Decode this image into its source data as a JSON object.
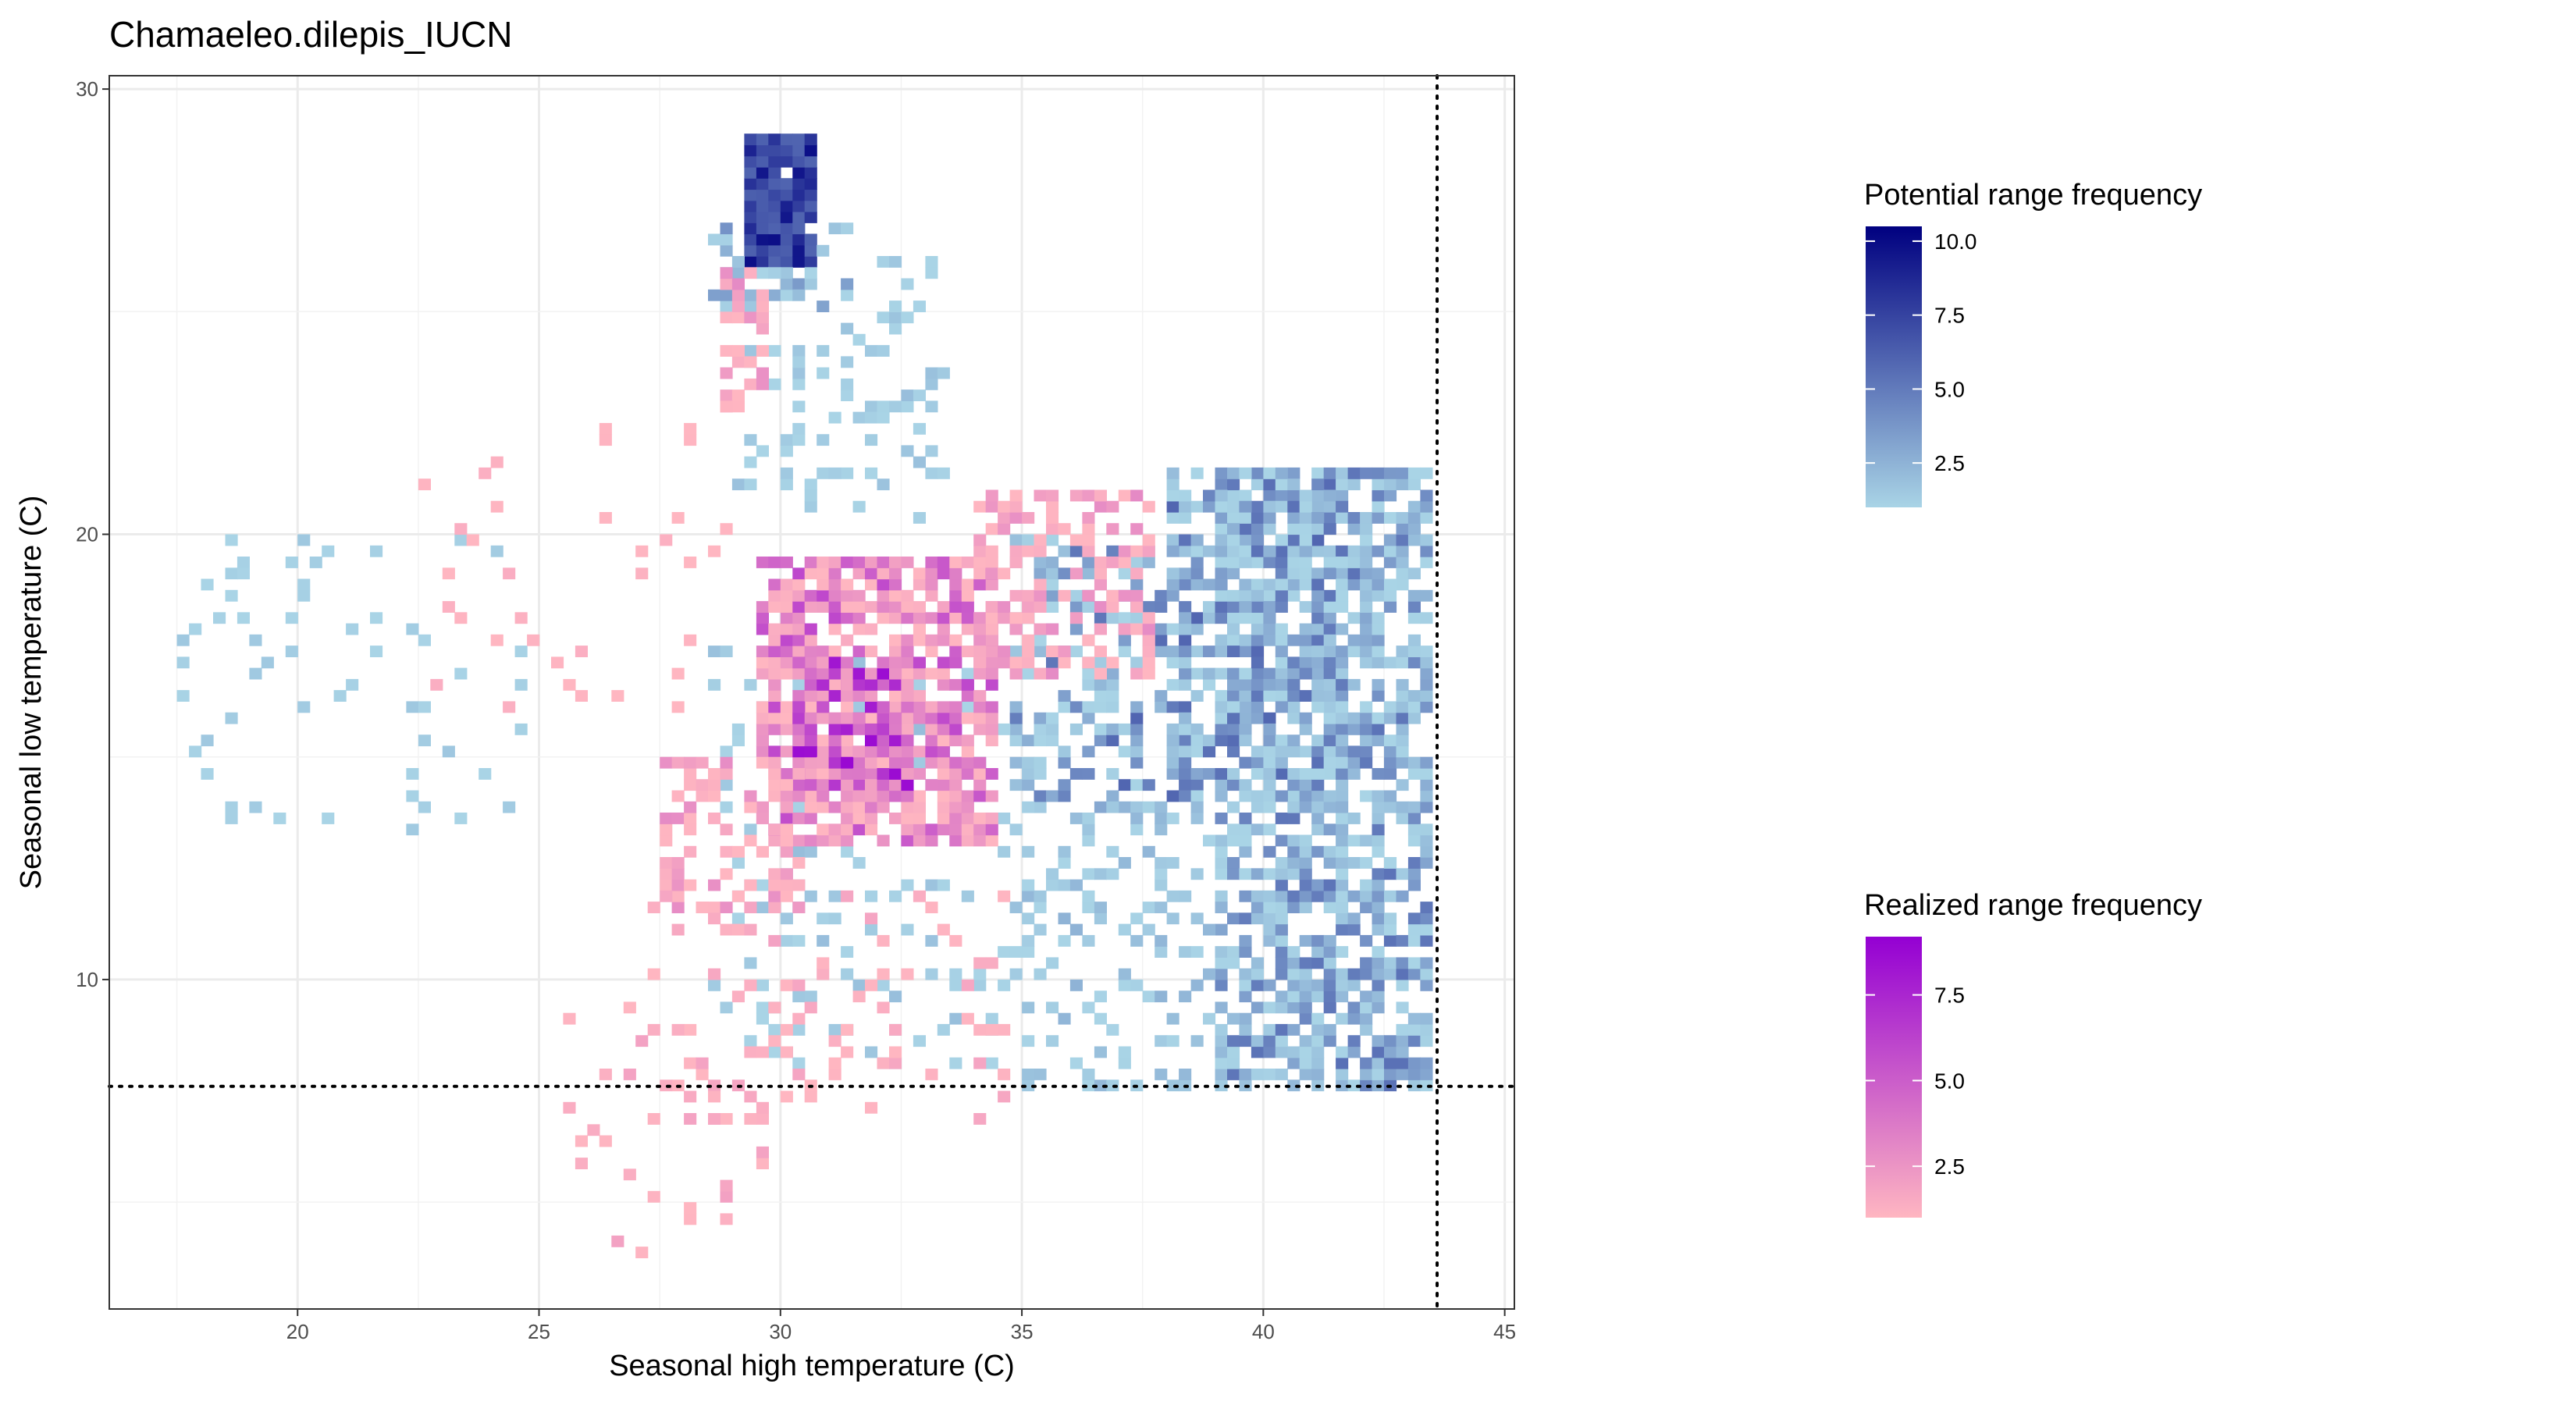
{
  "chart_data": {
    "type": "heatmap",
    "title": "Chamaeleo.dilepis_IUCN",
    "xlabel": "Seasonal high temperature (C)",
    "ylabel": "Seasonal low temperature (C)",
    "xlim": [
      16.1,
      45.2
    ],
    "ylim": [
      2.6,
      30.3
    ],
    "x_ticks": [
      20,
      25,
      30,
      35,
      40,
      45
    ],
    "y_ticks": [
      10,
      20,
      30
    ],
    "bin_size": [
      0.25,
      0.25
    ],
    "grid": true,
    "reference_lines": {
      "vertical_x": 43.6,
      "horizontal_y": 7.6,
      "style": "dotted"
    },
    "legend_position": "right",
    "series": [
      {
        "name": "Potential range frequency",
        "color_low": "#a9d4e6",
        "color_high": "#000080",
        "legend_breaks": [
          "2.5",
          "5.0",
          "7.5",
          "10.0"
        ],
        "legend_range": [
          1,
          10.5
        ],
        "clusters": [
          {
            "x": [
              29.4,
              30.6
            ],
            "y": [
              26.2,
              28.9
            ],
            "value": [
              6,
              10.5
            ],
            "density": 0.95
          },
          {
            "x": [
              28.6,
              31.4
            ],
            "y": [
              25.0,
              27.2
            ],
            "value": [
              1,
              4
            ],
            "density": 0.45
          },
          {
            "x": [
              29.2,
              33.2
            ],
            "y": [
              21.0,
              26.2
            ],
            "value": [
              1,
              2
            ],
            "density": 0.16
          },
          {
            "x": [
              17.3,
              25.5
            ],
            "y": [
              13.3,
              19.8
            ],
            "value": [
              1,
              1.6
            ],
            "density": 0.05
          },
          {
            "x": [
              30.0,
              33.5
            ],
            "y": [
              20.0,
              24.0
            ],
            "value": [
              1,
              1.5
            ],
            "density": 0.08
          },
          {
            "x": [
              34.8,
              38.6
            ],
            "y": [
              13.8,
              19.8
            ],
            "value": [
              1,
              6
            ],
            "density": 0.42
          },
          {
            "x": [
              38.2,
              41.6
            ],
            "y": [
              14.0,
              21.5
            ],
            "value": [
              1,
              6
            ],
            "density": 0.48
          },
          {
            "x": [
              39.2,
              43.5
            ],
            "y": [
              7.7,
              21.5
            ],
            "value": [
              1,
              5.5
            ],
            "density": 0.62
          },
          {
            "x": [
              35.2,
              39.5
            ],
            "y": [
              7.7,
              13.8
            ],
            "value": [
              1,
              2.5
            ],
            "density": 0.28
          },
          {
            "x": [
              28.6,
              35.2
            ],
            "y": [
              8.0,
              17.5
            ],
            "value": [
              1,
              2
            ],
            "density": 0.14
          }
        ]
      },
      {
        "name": "Realized range frequency",
        "color_low": "#ffb6c1",
        "color_high": "#9400d3",
        "legend_breaks": [
          "2.5",
          "5.0",
          "7.5"
        ],
        "legend_range": [
          1,
          9.2
        ],
        "clusters": [
          {
            "x": [
              29.6,
              34.4
            ],
            "y": [
              13.0,
              19.5
            ],
            "value": [
              1,
              6
            ],
            "density": 0.7
          },
          {
            "x": [
              30.4,
              32.6
            ],
            "y": [
              14.2,
              17.2
            ],
            "value": [
              2,
              9
            ],
            "density": 0.75
          },
          {
            "x": [
              27.6,
              30.4
            ],
            "y": [
              11.0,
              15.0
            ],
            "value": [
              1,
              3
            ],
            "density": 0.38
          },
          {
            "x": [
              34.0,
              37.6
            ],
            "y": [
              16.8,
              21.0
            ],
            "value": [
              1,
              3
            ],
            "density": 0.4
          },
          {
            "x": [
              25.6,
              30.0
            ],
            "y": [
              3.6,
              9.4
            ],
            "value": [
              1,
              2
            ],
            "density": 0.09
          },
          {
            "x": [
              28.8,
              29.6
            ],
            "y": [
              22.6,
              26.0
            ],
            "value": [
              1,
              3
            ],
            "density": 0.45
          },
          {
            "x": [
              21.8,
              28.8
            ],
            "y": [
              16.0,
              22.8
            ],
            "value": [
              1,
              1.5
            ],
            "density": 0.05
          },
          {
            "x": [
              27.0,
              34.8
            ],
            "y": [
              6.8,
              11.8
            ],
            "value": [
              1,
              2
            ],
            "density": 0.1
          }
        ]
      }
    ]
  }
}
